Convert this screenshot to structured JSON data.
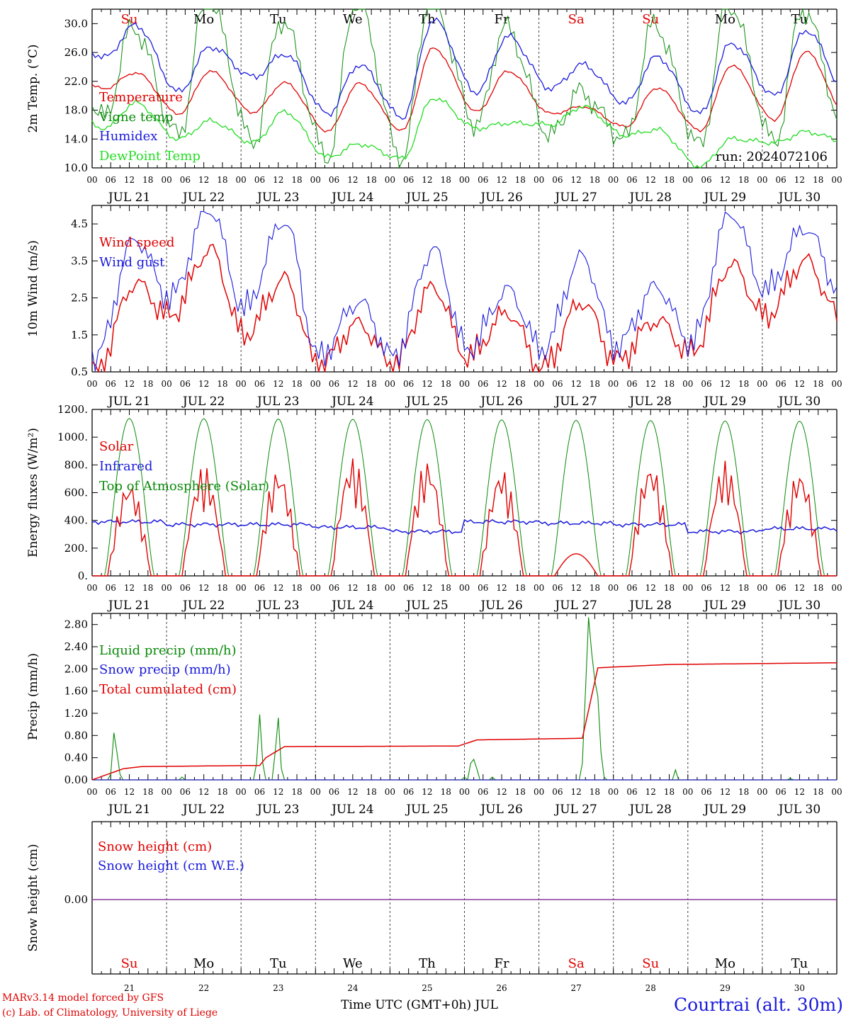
{
  "title": "Courtrai (alt. 30m)",
  "run": "run: 2024072106",
  "xlabel": "Time UTC (GMT+0h) JUL",
  "footer": [
    "MARv3.14 model forced by GFS",
    "(c) Lab. of Climatology, University of Liege"
  ],
  "days": [
    {
      "weekday": "Su",
      "date": "JUL 21",
      "num": "21",
      "weekend": true
    },
    {
      "weekday": "Mo",
      "date": "JUL 22",
      "num": "22",
      "weekend": false
    },
    {
      "weekday": "Tu",
      "date": "JUL 23",
      "num": "23",
      "weekend": false
    },
    {
      "weekday": "We",
      "date": "JUL 24",
      "num": "24",
      "weekend": false
    },
    {
      "weekday": "Th",
      "date": "JUL 25",
      "num": "25",
      "weekend": false
    },
    {
      "weekday": "Fr",
      "date": "JUL 26",
      "num": "26",
      "weekend": false
    },
    {
      "weekday": "Sa",
      "date": "JUL 27",
      "num": "27",
      "weekend": true
    },
    {
      "weekday": "Su",
      "date": "JUL 28",
      "num": "28",
      "weekend": true
    },
    {
      "weekday": "Mo",
      "date": "JUL 29",
      "num": "29",
      "weekend": false
    },
    {
      "weekday": "Tu",
      "date": "JUL 30",
      "num": "30",
      "weekend": false
    }
  ],
  "hour_ticks": [
    "00",
    "06",
    "12",
    "18"
  ],
  "end_tick": "00",
  "colors": {
    "red": "#e00000",
    "green": "#0a8a0a",
    "blue": "#1a1adc",
    "lightgreen": "#22dd22",
    "purple": "#8a3a9a",
    "grid": "#444444"
  },
  "chart_data": [
    {
      "type": "line",
      "ylabel": "2m Temp. (°C)",
      "ylim": [
        10,
        32
      ],
      "yticks": [
        "10.0",
        "14.0",
        "18.0",
        "22.0",
        "26.0",
        "30.0"
      ],
      "x": "hourly from JUL 21 00 UTC to JUL 31 00 UTC, 240 h",
      "series": [
        {
          "name": "Temperature",
          "color": "red",
          "peak_values": [
            23.2,
            23.4,
            21.8,
            21.7,
            26.6,
            23.4,
            18.5,
            21.1,
            24.2,
            26.1
          ],
          "min_values": [
            21.0,
            17.5,
            17.7,
            15.1,
            15.2,
            17.8,
            17.5,
            15.7,
            15.2,
            16.7
          ]
        },
        {
          "name": "Vigne temp",
          "color": "green",
          "peak_values": [
            29.5,
            34.0,
            30.5,
            33.5,
            34.0,
            29.5,
            20.5,
            30.0,
            33.0,
            32.0
          ],
          "min_values": [
            17.0,
            14.5,
            13.5,
            11.5,
            11.3,
            16.0,
            14.5,
            14.0,
            13.0,
            13.5
          ]
        },
        {
          "name": "Humidex",
          "color": "blue",
          "peak_values": [
            29.8,
            26.8,
            25.8,
            24.3,
            30.5,
            28.2,
            24.3,
            25.4,
            27.3,
            29.1
          ],
          "min_values": [
            25.3,
            20.5,
            22.6,
            17.5,
            17.0,
            20.5,
            21.0,
            19.0,
            17.5,
            20.0
          ]
        },
        {
          "name": "DewPoint Temp",
          "color": "lightgreen",
          "peak_values": [
            19.0,
            16.5,
            17.8,
            13.3,
            19.7,
            16.2,
            18.5,
            15.3,
            14.0,
            15.0
          ],
          "min_values": [
            15.5,
            14.0,
            13.5,
            11.5,
            11.3,
            15.5,
            16.0,
            14.5,
            10.2,
            13.5
          ]
        }
      ]
    },
    {
      "type": "line",
      "ylabel": "10m Wind (m/s)",
      "ylim": [
        0.5,
        5.0
      ],
      "yticks": [
        "0.5",
        "1.5",
        "2.5",
        "3.5",
        "4.5"
      ],
      "series": [
        {
          "name": "Wind speed",
          "color": "red",
          "peak_values": [
            2.9,
            3.8,
            3.0,
            1.8,
            2.8,
            2.1,
            2.4,
            1.9,
            3.4,
            3.5
          ],
          "min_values": [
            0.5,
            2.0,
            1.5,
            0.7,
            0.7,
            0.9,
            0.6,
            0.8,
            1.0,
            2.0
          ]
        },
        {
          "name": "Wind gust",
          "color": "blue",
          "peak_values": [
            4.1,
            4.9,
            4.6,
            2.4,
            3.8,
            2.7,
            3.6,
            2.8,
            4.8,
            4.4
          ],
          "min_values": [
            0.9,
            2.5,
            2.2,
            0.9,
            0.9,
            1.1,
            1.1,
            1.2,
            1.3,
            2.7
          ]
        }
      ]
    },
    {
      "type": "line",
      "ylabel": "Energy fluxes (W/m²)",
      "ylim": [
        0,
        1200
      ],
      "yticks": [
        "0.",
        "200.",
        "400.",
        "600.",
        "800.",
        "1000.",
        "1200."
      ],
      "series": [
        {
          "name": "Solar",
          "color": "red",
          "daily_peak": [
            690,
            800,
            780,
            860,
            840,
            780,
            160,
            820,
            830,
            770
          ]
        },
        {
          "name": "Infrared",
          "color": "blue",
          "daily_mean": [
            390,
            370,
            370,
            350,
            320,
            390,
            380,
            370,
            320,
            340
          ]
        },
        {
          "name": "Top of Atmosphere (Solar)",
          "color": "green",
          "daily_peak": [
            1135,
            1133,
            1131,
            1129,
            1127,
            1125,
            1122,
            1120,
            1117,
            1115
          ]
        }
      ]
    },
    {
      "type": "line",
      "ylabel": "Precip (mm/h)",
      "ylim": [
        0,
        3.0
      ],
      "yticks": [
        "0.00",
        "0.40",
        "0.80",
        "1.20",
        "1.60",
        "2.00",
        "2.40",
        "2.80"
      ],
      "series": [
        {
          "name": "Liquid precip (mm/h)",
          "color": "green",
          "events": [
            [
              6,
              0.1
            ],
            [
              7,
              0.85
            ],
            [
              8,
              0.5
            ],
            [
              9,
              0.1
            ],
            [
              29,
              0.05
            ],
            [
              53,
              0.3
            ],
            [
              54,
              1.18
            ],
            [
              55,
              0.3
            ],
            [
              59,
              0.5
            ],
            [
              60,
              1.12
            ],
            [
              61,
              0.2
            ],
            [
              120,
              0.05
            ],
            [
              122,
              0.3
            ],
            [
              123,
              0.37
            ],
            [
              124,
              0.2
            ],
            [
              129,
              0.05
            ],
            [
              158,
              0.3
            ],
            [
              159,
              1.6
            ],
            [
              160,
              2.93
            ],
            [
              161,
              2.3
            ],
            [
              162,
              1.8
            ],
            [
              163,
              1.5
            ],
            [
              164,
              0.5
            ],
            [
              165,
              0.05
            ],
            [
              188,
              0.18
            ],
            [
              225,
              0.03
            ]
          ]
        },
        {
          "name": "Snow precip (mm/h)",
          "color": "blue",
          "values": "0 throughout"
        },
        {
          "name": "Total cumulated (cm)",
          "color": "red",
          "steps": [
            [
              0,
              0.0
            ],
            [
              10,
              0.2
            ],
            [
              16,
              0.24
            ],
            [
              54,
              0.26
            ],
            [
              56,
              0.4
            ],
            [
              62,
              0.6
            ],
            [
              118,
              0.61
            ],
            [
              124,
              0.72
            ],
            [
              158,
              0.75
            ],
            [
              163,
              2.02
            ],
            [
              186,
              2.08
            ],
            [
              240,
              2.11
            ]
          ]
        }
      ]
    },
    {
      "type": "line",
      "ylabel": "Snow height (cm)",
      "yticks": [
        "0.00"
      ],
      "series": [
        {
          "name": "Snow height (cm)",
          "color": "red",
          "values": "0.00 throughout"
        },
        {
          "name": "Snow height (cm W.E.)",
          "color": "blue",
          "values": "0.00 throughout"
        }
      ]
    }
  ]
}
